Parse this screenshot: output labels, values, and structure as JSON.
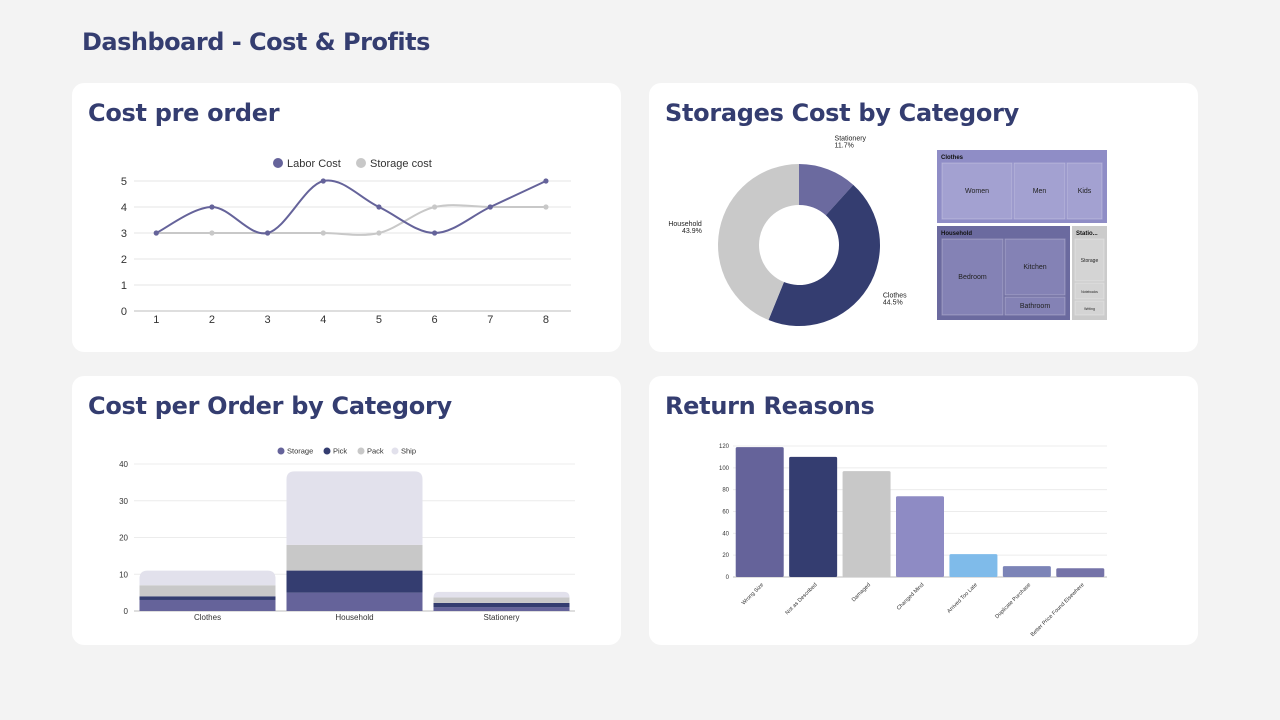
{
  "page": {
    "title": "Dashboard - Cost & Profits"
  },
  "cards": {
    "cost_per_order": {
      "title": "Cost pre order"
    },
    "storage_cost": {
      "title": "Storages Cost by Category"
    },
    "cost_by_category": {
      "title": "Cost per Order by Category"
    },
    "return_reasons": {
      "title": "Return Reasons"
    }
  },
  "chart_data": [
    {
      "id": "line",
      "type": "line",
      "x": [
        1,
        2,
        3,
        4,
        5,
        6,
        7,
        8
      ],
      "series": [
        {
          "name": "Labor Cost",
          "values": [
            3,
            4,
            3,
            5,
            4,
            3,
            4,
            5
          ],
          "color": "#65639a"
        },
        {
          "name": "Storage cost",
          "values": [
            3,
            3,
            3,
            3,
            3,
            4,
            4,
            4
          ],
          "color": "#c8c8c8"
        }
      ],
      "ylim": [
        0,
        5
      ],
      "yticks": [
        0,
        1,
        2,
        3,
        4,
        5
      ],
      "grid": true,
      "legend": "top"
    },
    {
      "id": "donut",
      "type": "pie",
      "slices": [
        {
          "label": "Stationery",
          "value": 11.7,
          "pct": "11.7%",
          "color": "#6b6a9f"
        },
        {
          "label": "Clothes",
          "value": 44.5,
          "pct": "44.5%",
          "color": "#343d70"
        },
        {
          "label": "Household",
          "value": 43.9,
          "pct": "43.9%",
          "color": "#c9c9c9"
        }
      ]
    },
    {
      "id": "treemap",
      "type": "treemap",
      "groups": [
        {
          "name": "Clothes",
          "items": [
            "Women",
            "Men",
            "Kids"
          ]
        },
        {
          "name": "Household",
          "items": [
            "Bedroom",
            "Kitchen",
            "Bathroom"
          ]
        },
        {
          "name": "Statio...",
          "items": [
            "Storage",
            "Notebooks",
            "Writing"
          ]
        }
      ]
    },
    {
      "id": "stacked",
      "type": "bar",
      "stacked": true,
      "categories": [
        "Clothes",
        "Household",
        "Stationery"
      ],
      "series": [
        {
          "name": "Storage",
          "values": [
            3,
            5,
            1
          ],
          "color": "#65639a"
        },
        {
          "name": "Pick",
          "values": [
            1,
            6,
            1.2
          ],
          "color": "#343d70"
        },
        {
          "name": "Pack",
          "values": [
            3,
            7,
            1.5
          ],
          "color": "#c8c8c8"
        },
        {
          "name": "Ship",
          "values": [
            4,
            20,
            1.5
          ],
          "color": "#e2e1ec"
        }
      ],
      "ylim": [
        0,
        40
      ],
      "yticks": [
        0,
        10,
        20,
        30,
        40
      ],
      "legend": "top"
    },
    {
      "id": "returns",
      "type": "bar",
      "categories": [
        "Wrong Size",
        "Not as Described",
        "Damaged",
        "Changed Mind",
        "Arrived Too Late",
        "Duplicate Purchase",
        "Better Price Found Elsewhere"
      ],
      "values": [
        119,
        110,
        97,
        74,
        21,
        10,
        8
      ],
      "colors": [
        "#65639a",
        "#343d70",
        "#c8c8c8",
        "#8e8bc4",
        "#7fbbea",
        "#7c84b7",
        "#7573a8"
      ],
      "ylim": [
        0,
        120
      ],
      "yticks": [
        0,
        20,
        40,
        60,
        80,
        100,
        120
      ]
    }
  ]
}
